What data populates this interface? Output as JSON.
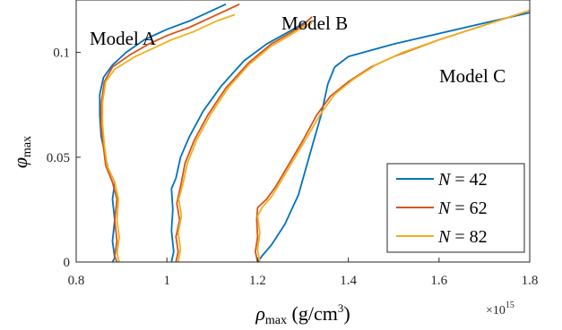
{
  "chart_data": {
    "type": "line",
    "xlabel_main": "ρ",
    "xlabel_sub": "max",
    "xlabel_units": " (g/cm",
    "xlabel_sup": "3",
    "xlabel_close": ")",
    "ylabel_main": "φ",
    "ylabel_sub": "max",
    "x_multiplier": "×10",
    "x_multiplier_exp": "15",
    "xlim": [
      0.8,
      1.8
    ],
    "ylim": [
      0,
      0.125
    ],
    "x_ticks": [
      {
        "value": 0.8,
        "label": "0.8"
      },
      {
        "value": 1.0,
        "label": "1"
      },
      {
        "value": 1.2,
        "label": "1.2"
      },
      {
        "value": 1.4,
        "label": "1.4"
      },
      {
        "value": 1.6,
        "label": "1.6"
      },
      {
        "value": 1.8,
        "label": "1.8"
      }
    ],
    "y_ticks": [
      {
        "value": 0,
        "label": "0"
      },
      {
        "value": 0.05,
        "label": "0.05"
      },
      {
        "value": 0.1,
        "label": "0.1"
      }
    ],
    "grid": false,
    "legend_position": "bottom-right",
    "annotations": [
      {
        "text": "Model A",
        "x": 0.88,
        "y": 0.117
      },
      {
        "text": "Model B",
        "x": 1.34,
        "y": 0.125
      },
      {
        "text": "Model C",
        "x": 1.64,
        "y": 0.1
      }
    ],
    "series": [
      {
        "name": "N = 42",
        "legend_var": "N",
        "legend_eq": " = 42",
        "color": "#0072BD",
        "models": [
          [
            [
              0.88,
              0
            ],
            [
              0.885,
              0.002
            ],
            [
              0.88,
              0.01
            ],
            [
              0.885,
              0.02
            ],
            [
              0.88,
              0.03
            ],
            [
              0.885,
              0.038
            ],
            [
              0.87,
              0.045
            ],
            [
              0.86,
              0.055
            ],
            [
              0.855,
              0.06
            ],
            [
              0.852,
              0.07
            ],
            [
              0.852,
              0.08
            ],
            [
              0.86,
              0.088
            ],
            [
              0.88,
              0.094
            ],
            [
              0.91,
              0.1
            ],
            [
              0.95,
              0.106
            ],
            [
              1.0,
              0.111
            ],
            [
              1.05,
              0.115
            ],
            [
              1.1,
              0.12
            ],
            [
              1.13,
              0.123
            ]
          ],
          [
            [
              1.01,
              0
            ],
            [
              1.015,
              0.005
            ],
            [
              1.01,
              0.015
            ],
            [
              1.013,
              0.025
            ],
            [
              1.01,
              0.035
            ],
            [
              1.02,
              0.04
            ],
            [
              1.03,
              0.05
            ],
            [
              1.05,
              0.06
            ],
            [
              1.08,
              0.072
            ],
            [
              1.12,
              0.084
            ],
            [
              1.17,
              0.096
            ],
            [
              1.22,
              0.104
            ],
            [
              1.27,
              0.11
            ],
            [
              1.31,
              0.115
            ]
          ],
          [
            [
              1.2,
              0
            ],
            [
              1.21,
              0.003
            ],
            [
              1.23,
              0.008
            ],
            [
              1.26,
              0.018
            ],
            [
              1.29,
              0.032
            ],
            [
              1.32,
              0.055
            ],
            [
              1.34,
              0.07
            ],
            [
              1.355,
              0.085
            ],
            [
              1.37,
              0.093
            ],
            [
              1.4,
              0.098
            ],
            [
              1.45,
              0.101
            ],
            [
              1.5,
              0.104
            ],
            [
              1.6,
              0.109
            ],
            [
              1.7,
              0.114
            ],
            [
              1.8,
              0.119
            ]
          ]
        ]
      },
      {
        "name": "N = 62",
        "legend_var": "N",
        "legend_eq": " = 62",
        "color": "#D95319",
        "models": [
          [
            [
              0.89,
              0
            ],
            [
              0.885,
              0.003
            ],
            [
              0.89,
              0.01
            ],
            [
              0.885,
              0.02
            ],
            [
              0.89,
              0.03
            ],
            [
              0.88,
              0.038
            ],
            [
              0.865,
              0.046
            ],
            [
              0.86,
              0.055
            ],
            [
              0.855,
              0.065
            ],
            [
              0.855,
              0.075
            ],
            [
              0.862,
              0.086
            ],
            [
              0.88,
              0.093
            ],
            [
              0.92,
              0.099
            ],
            [
              0.96,
              0.104
            ],
            [
              1.0,
              0.108
            ],
            [
              1.05,
              0.112
            ],
            [
              1.1,
              0.117
            ],
            [
              1.16,
              0.123
            ]
          ],
          [
            [
              1.02,
              0
            ],
            [
              1.025,
              0.005
            ],
            [
              1.02,
              0.012
            ],
            [
              1.028,
              0.02
            ],
            [
              1.022,
              0.028
            ],
            [
              1.03,
              0.036
            ],
            [
              1.04,
              0.047
            ],
            [
              1.06,
              0.058
            ],
            [
              1.09,
              0.07
            ],
            [
              1.13,
              0.083
            ],
            [
              1.18,
              0.095
            ],
            [
              1.23,
              0.104
            ],
            [
              1.27,
              0.109
            ],
            [
              1.3,
              0.113
            ],
            [
              1.32,
              0.117
            ]
          ],
          [
            [
              1.2,
              0
            ],
            [
              1.195,
              0.005
            ],
            [
              1.2,
              0.012
            ],
            [
              1.198,
              0.02
            ],
            [
              1.2,
              0.026
            ],
            [
              1.22,
              0.03
            ],
            [
              1.24,
              0.036
            ],
            [
              1.27,
              0.047
            ],
            [
              1.3,
              0.058
            ],
            [
              1.33,
              0.07
            ],
            [
              1.36,
              0.079
            ],
            [
              1.4,
              0.086
            ],
            [
              1.45,
              0.093
            ],
            [
              1.5,
              0.098
            ],
            [
              1.6,
              0.106
            ],
            [
              1.7,
              0.113
            ],
            [
              1.8,
              0.12
            ]
          ]
        ]
      },
      {
        "name": "N = 82",
        "legend_var": "N",
        "legend_eq": " = 82",
        "color": "#EDB120",
        "models": [
          [
            [
              0.895,
              0
            ],
            [
              0.89,
              0.004
            ],
            [
              0.895,
              0.012
            ],
            [
              0.89,
              0.02
            ],
            [
              0.893,
              0.03
            ],
            [
              0.885,
              0.038
            ],
            [
              0.868,
              0.046
            ],
            [
              0.862,
              0.056
            ],
            [
              0.858,
              0.066
            ],
            [
              0.858,
              0.076
            ],
            [
              0.865,
              0.086
            ],
            [
              0.885,
              0.092
            ],
            [
              0.93,
              0.098
            ],
            [
              0.97,
              0.102
            ],
            [
              1.01,
              0.106
            ],
            [
              1.06,
              0.11
            ],
            [
              1.11,
              0.115
            ],
            [
              1.15,
              0.118
            ]
          ],
          [
            [
              1.025,
              0
            ],
            [
              1.03,
              0.006
            ],
            [
              1.025,
              0.014
            ],
            [
              1.032,
              0.022
            ],
            [
              1.026,
              0.03
            ],
            [
              1.035,
              0.037
            ],
            [
              1.045,
              0.047
            ],
            [
              1.065,
              0.058
            ],
            [
              1.095,
              0.07
            ],
            [
              1.135,
              0.083
            ],
            [
              1.18,
              0.094
            ],
            [
              1.23,
              0.103
            ],
            [
              1.27,
              0.108
            ],
            [
              1.3,
              0.112
            ],
            [
              1.32,
              0.114
            ]
          ],
          [
            [
              1.205,
              0
            ],
            [
              1.2,
              0.006
            ],
            [
              1.205,
              0.014
            ],
            [
              1.2,
              0.022
            ],
            [
              1.21,
              0.026
            ],
            [
              1.23,
              0.031
            ],
            [
              1.25,
              0.038
            ],
            [
              1.28,
              0.049
            ],
            [
              1.31,
              0.06
            ],
            [
              1.34,
              0.071
            ],
            [
              1.37,
              0.08
            ],
            [
              1.41,
              0.087
            ],
            [
              1.46,
              0.094
            ],
            [
              1.52,
              0.1
            ],
            [
              1.6,
              0.106
            ],
            [
              1.7,
              0.113
            ],
            [
              1.8,
              0.12
            ]
          ]
        ]
      }
    ]
  }
}
